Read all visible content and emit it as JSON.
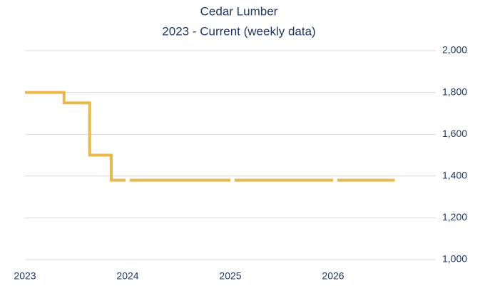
{
  "chart_data": {
    "type": "line",
    "title": "Cedar Lumber",
    "subtitle": "2023 - Current (weekly data)",
    "x": [
      2023.0,
      2023.38,
      2023.38,
      2023.63,
      2023.63,
      2023.84,
      2023.84,
      2023.98,
      2024.0,
      2024.02,
      2025.0,
      2025.02,
      2025.04,
      2026.0,
      2026.02,
      2026.04,
      2026.6
    ],
    "series": [
      {
        "name": "Cedar Lumber",
        "color": "#e9b84b",
        "values": [
          1800,
          1800,
          1750,
          1750,
          1500,
          1500,
          1380,
          1380,
          null,
          1380,
          1380,
          null,
          1380,
          1380,
          null,
          1380,
          1380
        ]
      }
    ],
    "xlim": [
      2023,
      2027
    ],
    "xticks": [
      2023,
      2024,
      2025,
      2026
    ],
    "ylim": [
      1000,
      2000
    ],
    "yticks": [
      {
        "value": 1000,
        "label": "1,000"
      },
      {
        "value": 1200,
        "label": "1,200"
      },
      {
        "value": 1400,
        "label": "1,400"
      },
      {
        "value": 1600,
        "label": "1,600"
      },
      {
        "value": 1800,
        "label": "1,800"
      },
      {
        "value": 2000,
        "label": "2,000"
      }
    ],
    "grid": true
  }
}
